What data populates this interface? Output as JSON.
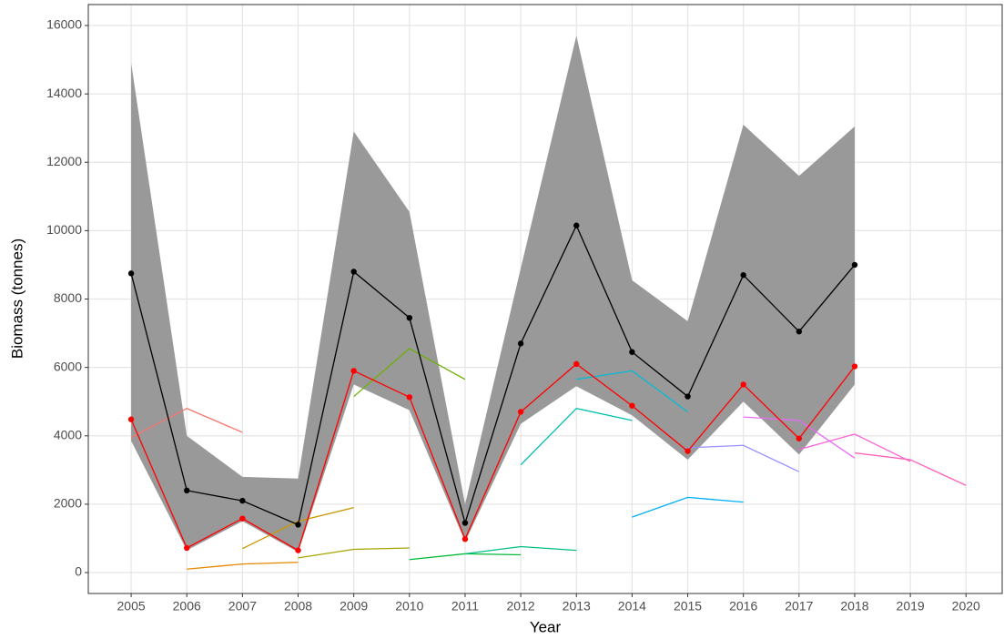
{
  "chart_data": {
    "type": "line",
    "x_label": "Year",
    "y_label": "Biomass (tonnes)",
    "xlim": [
      2004.23,
      2020.65
    ],
    "ylim": [
      -612,
      16613
    ],
    "xticks": [
      2005,
      2006,
      2007,
      2008,
      2009,
      2010,
      2011,
      2012,
      2013,
      2014,
      2015,
      2016,
      2017,
      2018,
      2019,
      2020
    ],
    "yticks": [
      0,
      2000,
      4000,
      6000,
      8000,
      10000,
      12000,
      14000,
      16000
    ],
    "grid": true,
    "band": {
      "color": "#999999",
      "x": [
        2005,
        2006,
        2007,
        2008,
        2009,
        2010,
        2011,
        2012,
        2013,
        2014,
        2015,
        2016,
        2017,
        2018
      ],
      "lower": [
        3850,
        650,
        1500,
        600,
        5500,
        4750,
        900,
        4350,
        5450,
        4600,
        3300,
        5000,
        3450,
        5500
      ],
      "upper": [
        14900,
        4000,
        2800,
        2750,
        12900,
        10550,
        2000,
        8900,
        15700,
        8550,
        7350,
        13100,
        11600,
        13050
      ]
    },
    "series": [
      {
        "color": "#F8766D",
        "points": false,
        "x": [
          2005,
          2006,
          2007
        ],
        "values": [
          3950,
          4800,
          4100
        ]
      },
      {
        "color": "#E58700",
        "points": false,
        "x": [
          2006,
          2007,
          2008
        ],
        "values": [
          100,
          250,
          300
        ]
      },
      {
        "color": "#C99800",
        "points": false,
        "x": [
          2007,
          2008,
          2009
        ],
        "values": [
          700,
          1500,
          1900
        ]
      },
      {
        "color": "#A3A500",
        "points": false,
        "x": [
          2008,
          2009,
          2010
        ],
        "values": [
          430,
          680,
          720
        ]
      },
      {
        "color": "#6BB100",
        "points": false,
        "x": [
          2009,
          2010,
          2011
        ],
        "values": [
          5150,
          6550,
          5650
        ]
      },
      {
        "color": "#00BA38",
        "points": false,
        "x": [
          2010,
          2011,
          2012
        ],
        "values": [
          380,
          550,
          520
        ]
      },
      {
        "color": "#00BF7D",
        "points": false,
        "x": [
          2011,
          2012,
          2013
        ],
        "values": [
          550,
          760,
          650
        ]
      },
      {
        "color": "#00C0AF",
        "points": false,
        "x": [
          2012,
          2013,
          2014
        ],
        "values": [
          3150,
          4800,
          4450
        ]
      },
      {
        "color": "#00BCD8",
        "points": false,
        "x": [
          2013,
          2014,
          2015
        ],
        "values": [
          5650,
          5900,
          4700
        ]
      },
      {
        "color": "#00B0F6",
        "points": false,
        "x": [
          2014,
          2015,
          2016
        ],
        "values": [
          1620,
          2200,
          2060
        ]
      },
      {
        "color": "#9590FF",
        "points": false,
        "x": [
          2015,
          2016,
          2017
        ],
        "values": [
          3650,
          3720,
          2950
        ]
      },
      {
        "color": "#E76BF3",
        "points": false,
        "x": [
          2016,
          2017,
          2018
        ],
        "values": [
          4550,
          4450,
          3350
        ]
      },
      {
        "color": "#FA62DB",
        "points": false,
        "x": [
          2017,
          2018,
          2019
        ],
        "values": [
          3600,
          4050,
          3250
        ]
      },
      {
        "color": "#FF62BC",
        "points": false,
        "x": [
          2018,
          2019,
          2020
        ],
        "values": [
          3500,
          3300,
          2550
        ]
      },
      {
        "color": "#000000",
        "points": true,
        "x": [
          2005,
          2006,
          2007,
          2008,
          2009,
          2010,
          2011,
          2012,
          2013,
          2014,
          2015,
          2016,
          2017,
          2018
        ],
        "values": [
          8750,
          2400,
          2100,
          1400,
          8800,
          7450,
          1450,
          6700,
          10150,
          6450,
          5150,
          8700,
          7050,
          9000
        ]
      },
      {
        "color": "#FF0000",
        "points": true,
        "x": [
          2005,
          2006,
          2007,
          2008,
          2009,
          2010,
          2011,
          2012,
          2013,
          2014,
          2015,
          2016,
          2017,
          2018
        ],
        "values": [
          4480,
          720,
          1580,
          650,
          5900,
          5130,
          980,
          4700,
          6100,
          4880,
          3550,
          5500,
          3920,
          6030
        ]
      }
    ]
  }
}
